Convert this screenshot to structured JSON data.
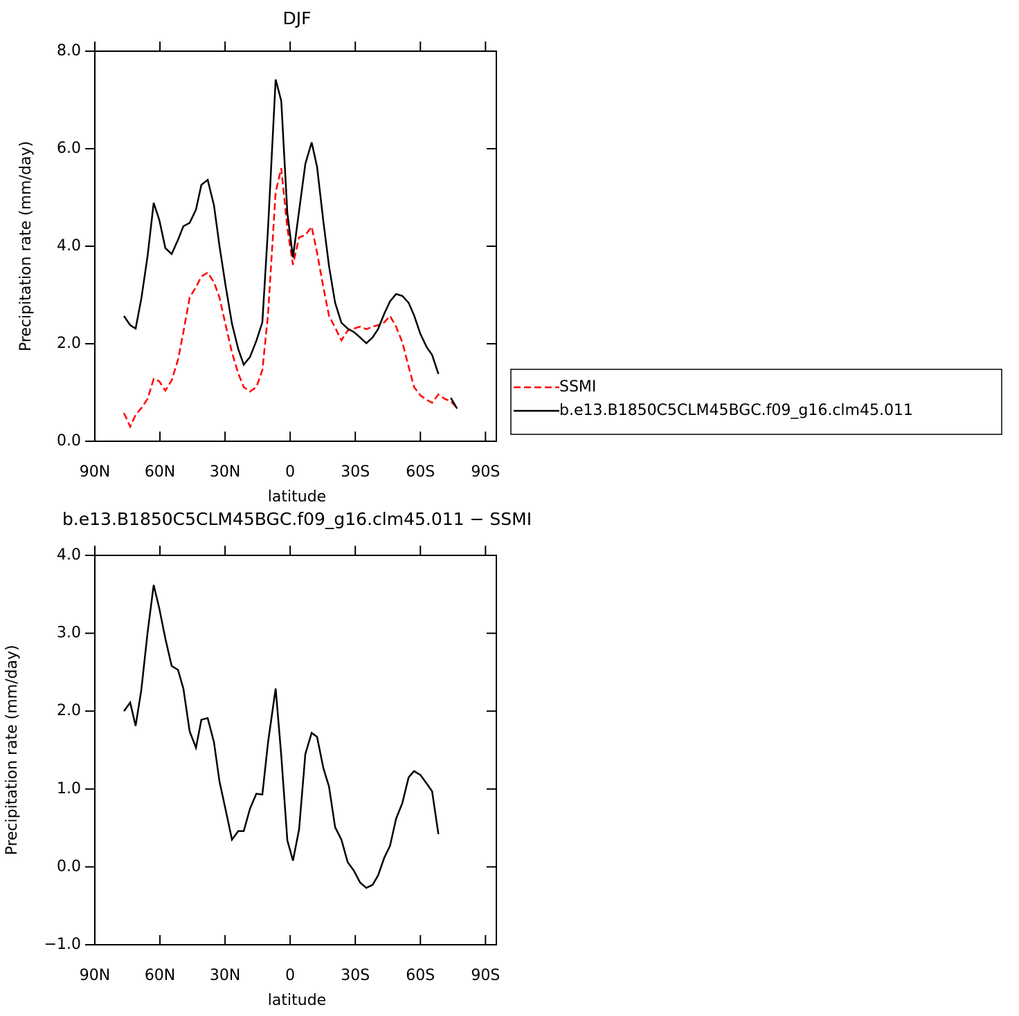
{
  "chart_data": [
    {
      "type": "line",
      "title": "DJF",
      "xlabel": "latitude",
      "ylabel": "Precipitation rate (mm/day)",
      "x": [
        76.6,
        73.7,
        71.2,
        68.6,
        65.7,
        62.9,
        60.3,
        57.5,
        54.6,
        51.7,
        49.2,
        46.3,
        43.4,
        40.9,
        38.0,
        35.1,
        32.6,
        29.7,
        26.8,
        23.9,
        21.4,
        18.5,
        15.6,
        12.8,
        10.2,
        6.7,
        4.1,
        1.3,
        -1.3,
        -4.1,
        -7.0,
        -9.9,
        -12.4,
        -15.3,
        -17.9,
        -20.7,
        -23.6,
        -26.5,
        -29.4,
        -32.2,
        -35.1,
        -38.0,
        -40.5,
        -43.4,
        -46.0,
        -48.8,
        -51.7,
        -54.6,
        -57.1,
        -60.0,
        -62.9,
        -65.4,
        -68.3,
        -71.2,
        -74.0,
        -76.9
      ],
      "series": [
        {
          "name": "SSMI",
          "color": "#ff0000",
          "dashed": true,
          "values": [
            0.58,
            0.3,
            0.54,
            0.68,
            0.87,
            1.28,
            1.23,
            1.04,
            1.25,
            1.67,
            2.24,
            2.95,
            3.16,
            3.38,
            3.46,
            3.26,
            2.95,
            2.38,
            1.82,
            1.39,
            1.11,
            1.02,
            1.11,
            1.46,
            2.6,
            5.11,
            5.6,
            4.37,
            3.62,
            4.18,
            4.23,
            4.4,
            3.87,
            3.16,
            2.57,
            2.33,
            2.07,
            2.27,
            2.31,
            2.35,
            2.3,
            2.35,
            2.38,
            2.44,
            2.57,
            2.35,
            2.03,
            1.53,
            1.11,
            0.94,
            0.85,
            0.79,
            0.96,
            0.87,
            0.82,
            0.68
          ]
        },
        {
          "name": "b.e13.B1850C5CLM45BGC.f09_g16.clm45.011",
          "color": "#000000",
          "dashed": false,
          "values": [
            2.57,
            2.38,
            2.31,
            2.92,
            3.8,
            4.89,
            4.54,
            3.96,
            3.84,
            4.13,
            4.41,
            4.48,
            4.75,
            5.26,
            5.36,
            4.84,
            4.01,
            3.18,
            2.41,
            1.89,
            1.57,
            1.73,
            2.06,
            2.44,
            4.37,
            7.42,
            6.98,
            4.68,
            3.77,
            4.72,
            5.69,
            6.13,
            5.63,
            4.51,
            3.59,
            2.84,
            2.43,
            2.31,
            2.24,
            2.13,
            2.01,
            2.13,
            2.3,
            2.62,
            2.87,
            3.02,
            2.98,
            2.84,
            2.58,
            2.2,
            1.93,
            1.77,
            1.38,
            null,
            0.89,
            0.67
          ]
        }
      ],
      "xlim": [
        90,
        -95
      ],
      "ylim": [
        0,
        8
      ],
      "xticks": [
        {
          "value": 90,
          "label": "90N"
        },
        {
          "value": 60,
          "label": "60N"
        },
        {
          "value": 30,
          "label": "30N"
        },
        0,
        {
          "value": -30,
          "label": "30S"
        },
        {
          "value": -60,
          "label": "60S"
        },
        {
          "value": -90,
          "label": "90S"
        }
      ],
      "yticks": [
        {
          "value": 0,
          "label": "0.0"
        },
        {
          "value": 2,
          "label": "2.0"
        },
        {
          "value": 4,
          "label": "4.0"
        },
        {
          "value": 6,
          "label": "6.0"
        },
        {
          "value": 8,
          "label": "8.0"
        }
      ],
      "legend": "right"
    },
    {
      "type": "line",
      "title": "b.e13.B1850C5CLM45BGC.f09_g16.clm45.011 − SSMI",
      "xlabel": "latitude",
      "ylabel": "Precipitation rate (mm/day)",
      "x": [
        76.6,
        73.7,
        71.2,
        68.6,
        65.7,
        62.9,
        60.3,
        57.5,
        54.6,
        51.7,
        49.2,
        46.3,
        43.4,
        40.9,
        38.0,
        35.1,
        32.6,
        29.7,
        26.8,
        23.9,
        21.4,
        18.5,
        15.6,
        12.8,
        10.2,
        6.7,
        4.1,
        1.3,
        -1.3,
        -4.1,
        -7.0,
        -9.9,
        -12.4,
        -15.3,
        -17.9,
        -20.7,
        -23.6,
        -26.5,
        -29.4,
        -32.2,
        -35.1,
        -38.0,
        -40.5,
        -43.4,
        -46.0,
        -48.8,
        -51.7,
        -54.6,
        -57.1,
        -60.0,
        -62.9,
        -65.4,
        -68.3,
        -71.2,
        -74.0,
        -76.9
      ],
      "series": [
        {
          "color": "#000000",
          "dashed": false,
          "values": [
            2.0,
            2.11,
            1.81,
            2.27,
            3.01,
            3.62,
            3.32,
            2.93,
            2.58,
            2.53,
            2.29,
            1.74,
            1.53,
            1.89,
            1.91,
            1.6,
            1.1,
            0.73,
            0.35,
            0.46,
            0.46,
            0.75,
            0.94,
            0.93,
            1.6,
            2.29,
            1.43,
            0.34,
            0.08,
            0.48,
            1.45,
            1.72,
            1.67,
            1.27,
            1.03,
            0.51,
            0.35,
            0.06,
            -0.05,
            -0.2,
            -0.27,
            -0.23,
            -0.11,
            0.12,
            0.27,
            0.62,
            0.82,
            1.15,
            1.23,
            1.18,
            1.07,
            0.97,
            0.42,
            null,
            null,
            null
          ]
        }
      ],
      "xlim": [
        90,
        -95
      ],
      "ylim": [
        -1,
        4
      ],
      "xticks": [
        {
          "value": 90,
          "label": "90N"
        },
        {
          "value": 60,
          "label": "60N"
        },
        {
          "value": 30,
          "label": "30N"
        },
        0,
        {
          "value": -30,
          "label": "30S"
        },
        {
          "value": -60,
          "label": "60S"
        },
        {
          "value": -90,
          "label": "90S"
        }
      ],
      "yticks": [
        {
          "value": -1,
          "label": "−1.0"
        },
        {
          "value": 0,
          "label": "0.0"
        },
        {
          "value": 1,
          "label": "1.0"
        },
        {
          "value": 2,
          "label": "2.0"
        },
        {
          "value": 3,
          "label": "3.0"
        },
        {
          "value": 4,
          "label": "4.0"
        }
      ]
    }
  ]
}
